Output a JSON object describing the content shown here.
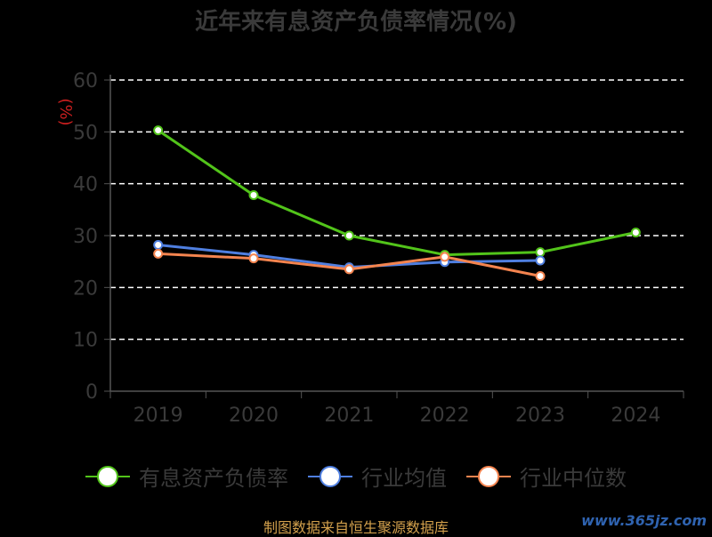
{
  "title": "近年来有息资产负债率情况(%)",
  "footer": "制图数据来自恒生聚源数据库",
  "watermark": "www.365jz.com",
  "chart_data": {
    "type": "line",
    "title": "近年来有息资产负债率情况(%)",
    "ylabel": "(%)",
    "xlabel": "",
    "categories": [
      "2019",
      "2020",
      "2021",
      "2022",
      "2023",
      "2024"
    ],
    "ylim": [
      0,
      60
    ],
    "yticks": [
      0,
      10,
      20,
      30,
      40,
      50,
      60
    ],
    "grid": true,
    "legend_position": "bottom",
    "series": [
      {
        "name": "有息资产负债率",
        "color": "#52c41a",
        "values": [
          50.3,
          37.8,
          30.0,
          26.3,
          26.8,
          30.6
        ]
      },
      {
        "name": "行业均值",
        "color": "#4f7fe0",
        "values": [
          28.2,
          26.3,
          23.9,
          24.9,
          25.2,
          null
        ]
      },
      {
        "name": "行业中位数",
        "color": "#f4844f",
        "values": [
          26.5,
          25.6,
          23.5,
          25.9,
          22.2,
          null
        ]
      }
    ]
  }
}
